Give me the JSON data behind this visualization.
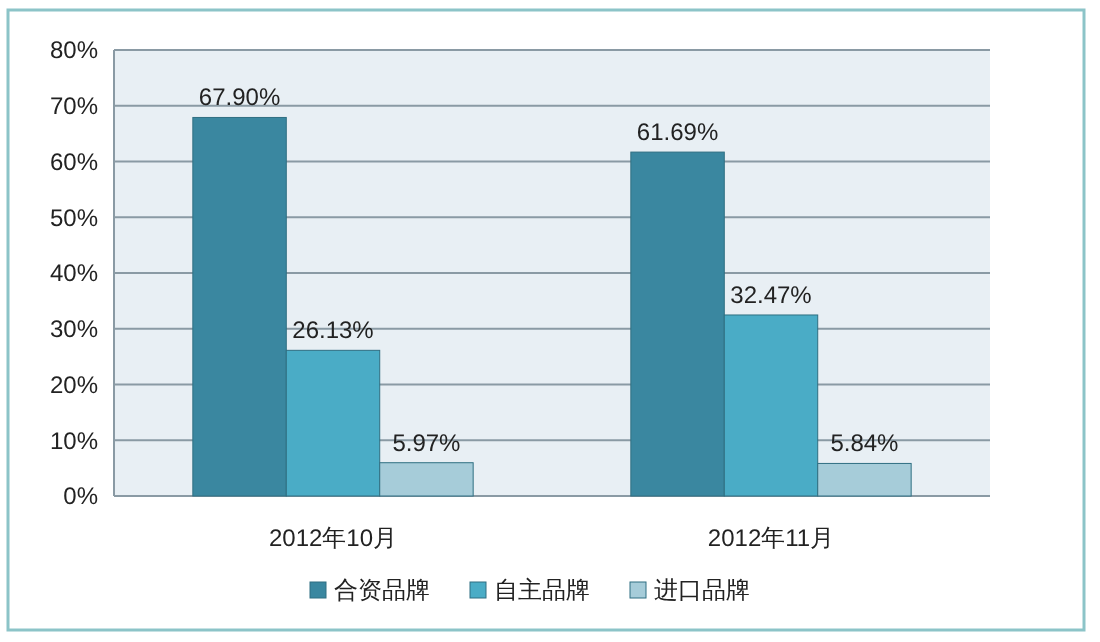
{
  "chart_data": {
    "type": "bar",
    "categories": [
      "2012年10月",
      "2012年11月"
    ],
    "series": [
      {
        "name": "合资品牌",
        "color": "#3a87a0",
        "values": [
          67.9,
          61.69
        ],
        "value_labels": [
          "67.90%",
          "61.69%"
        ]
      },
      {
        "name": "自主品牌",
        "color": "#4aacc6",
        "values": [
          26.13,
          32.47
        ],
        "value_labels": [
          "26.13%",
          "32.47%"
        ]
      },
      {
        "name": "进口品牌",
        "color": "#a6ccd9",
        "values": [
          5.97,
          5.84
        ],
        "value_labels": [
          "5.97%",
          "5.84%"
        ]
      }
    ],
    "ylim": [
      0,
      80
    ],
    "yticks": [
      {
        "value": 0,
        "label": "0%"
      },
      {
        "value": 10,
        "label": "10%"
      },
      {
        "value": 20,
        "label": "20%"
      },
      {
        "value": 30,
        "label": "30%"
      },
      {
        "value": 40,
        "label": "40%"
      },
      {
        "value": 50,
        "label": "50%"
      },
      {
        "value": 60,
        "label": "60%"
      },
      {
        "value": 70,
        "label": "70%"
      },
      {
        "value": 80,
        "label": "80%"
      }
    ],
    "grid": "y",
    "legend": "bottom"
  }
}
